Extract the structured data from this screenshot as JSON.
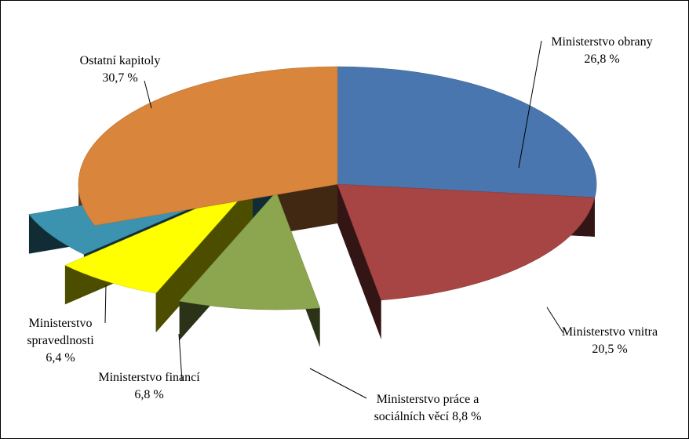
{
  "chart_data": {
    "type": "pie",
    "style": "exploded-3d",
    "title": "",
    "slices": [
      {
        "name": "Ministerstvo obrany",
        "lines": [
          "Ministerstvo  obrany",
          "26,8 %"
        ],
        "value": 26.8,
        "value_label": "26,8 %",
        "color": "#4A76AF"
      },
      {
        "name": "Ministerstvo vnitra",
        "lines": [
          "Ministerstvo  vnitra",
          "20,5 %"
        ],
        "value": 20.5,
        "value_label": "20,5 %",
        "color": "#A64543"
      },
      {
        "name": "Ministerstvo práce a sociálních věcí",
        "lines": [
          "Ministerstvo  práce a",
          "sociálních  věcí 8,8 %"
        ],
        "value": 8.8,
        "value_label": "8,8 %",
        "color": "#8BA64E"
      },
      {
        "name": "Ministerstvo financí",
        "lines": [
          "Ministerstvo  financí",
          "6,8 %"
        ],
        "value": 6.8,
        "value_label": "6,8 %",
        "color": "#FFFF00"
      },
      {
        "name": "Ministerstvo spravedlnosti",
        "lines": [
          "Ministerstvo",
          "spravedlnosti",
          "6,4 %"
        ],
        "value": 6.4,
        "value_label": "6,4 %",
        "color": "#3B93AF"
      },
      {
        "name": "Ostatní kapitoly",
        "lines": [
          "Ostatní  kapitoly",
          "30,7 %"
        ],
        "value": 30.7,
        "value_label": "30,7 %",
        "color": "#D9853B"
      }
    ]
  }
}
